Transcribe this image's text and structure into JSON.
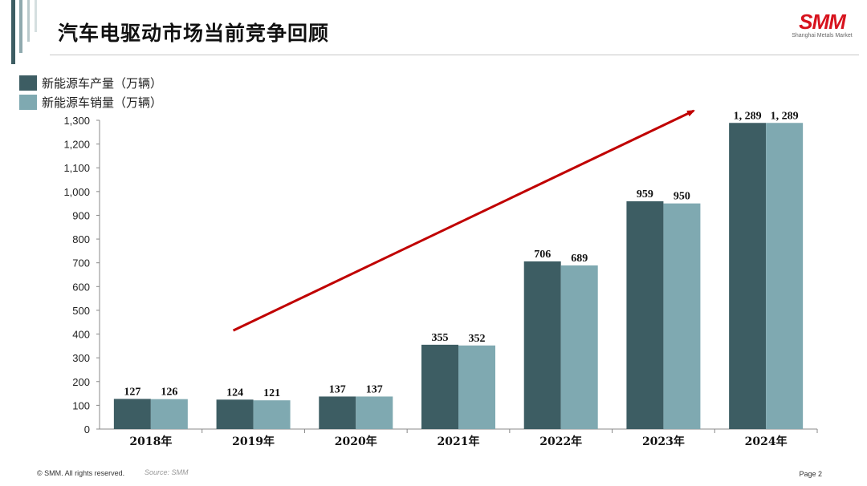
{
  "page": {
    "title": "汽车电驱动市场当前竞争回顾",
    "logo": {
      "mark": "SMM",
      "subtitle": "Shanghai Metals Market"
    },
    "footer": {
      "copyright": "© SMM. All rights reserved.",
      "source": "Source: SMM",
      "page": "Page 2"
    }
  },
  "chart_data": {
    "type": "bar",
    "title": "",
    "xlabel": "",
    "ylabel": "",
    "categories": [
      "2018年",
      "2019年",
      "2020年",
      "2021年",
      "2022年",
      "2023年",
      "2024年"
    ],
    "series": [
      {
        "name": "新能源车产量（万辆）",
        "color": "#3d5d63",
        "values": [
          127,
          124,
          137,
          355,
          706,
          959,
          1289
        ],
        "labels": [
          "127",
          "124",
          "137",
          "355",
          "706",
          "959",
          "1, 289"
        ]
      },
      {
        "name": "新能源车销量（万辆）",
        "color": "#7fa9b1",
        "values": [
          126,
          121,
          137,
          352,
          689,
          950,
          1289
        ],
        "labels": [
          "126",
          "121",
          "137",
          "352",
          "689",
          "950",
          "1, 289"
        ]
      }
    ],
    "ylim": [
      0,
      1300
    ],
    "yticks": [
      0,
      100,
      200,
      300,
      400,
      500,
      600,
      700,
      800,
      900,
      1000,
      1100,
      1200,
      1300
    ],
    "ytick_labels": [
      "0",
      "100",
      "200",
      "300",
      "400",
      "500",
      "600",
      "700",
      "800",
      "900",
      "1,000",
      "1,100",
      "1,200",
      "1,300"
    ],
    "grid": false,
    "legend_position": "top-left",
    "annotations": [
      {
        "type": "trend-arrow",
        "color": "#c00000",
        "from": [
          "2019年",
          415
        ],
        "to": [
          "2024年",
          1340
        ]
      }
    ]
  }
}
